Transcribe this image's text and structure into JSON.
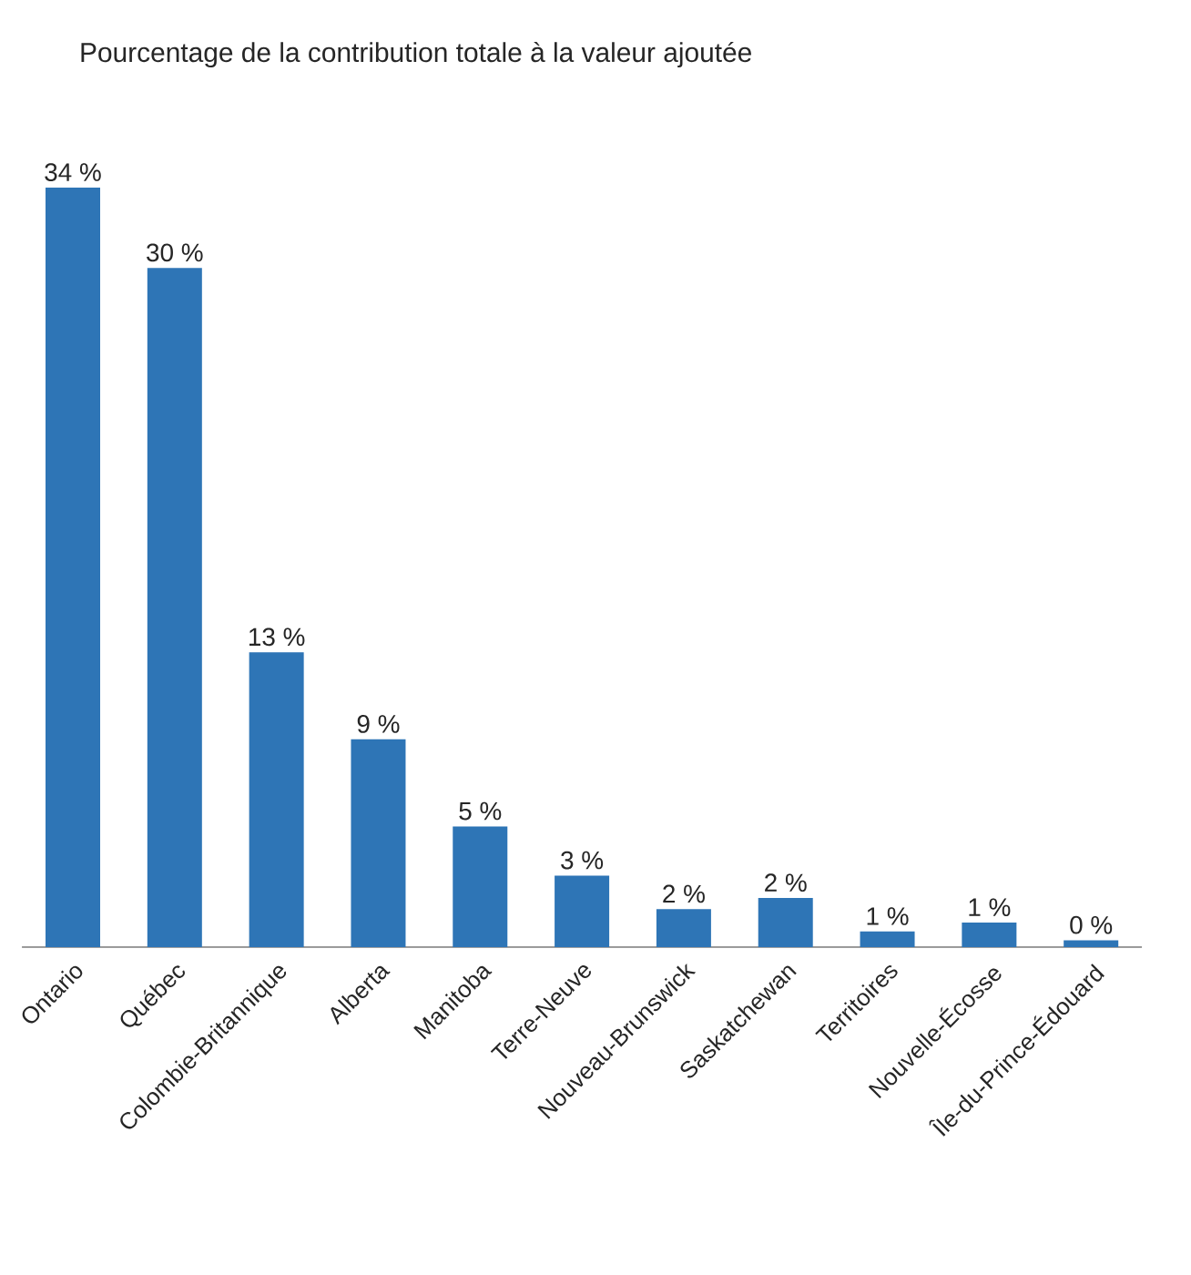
{
  "chart_data": {
    "type": "bar",
    "title": "Pourcentage de la contribution totale à la valeur ajoutée",
    "categories": [
      "Ontario",
      "Québec",
      "Colombie-Britannique",
      "Alberta",
      "Manitoba",
      "Terre-Neuve",
      "Nouveau-Brunswick",
      "Saskatchewan",
      "Territoires",
      "Nouvelle-Écosse",
      "Île-du-Prince-Édouard"
    ],
    "values": [
      34,
      30.4,
      13.2,
      9.3,
      5.4,
      3.2,
      1.7,
      2.2,
      0.7,
      1.1,
      0.3
    ],
    "value_labels": [
      "34 %",
      "30 %",
      "13 %",
      "9 %",
      "5 %",
      "3 %",
      "2 %",
      "2 %",
      "1 %",
      "1 %",
      "0 %"
    ],
    "color": "#2e75b6"
  }
}
